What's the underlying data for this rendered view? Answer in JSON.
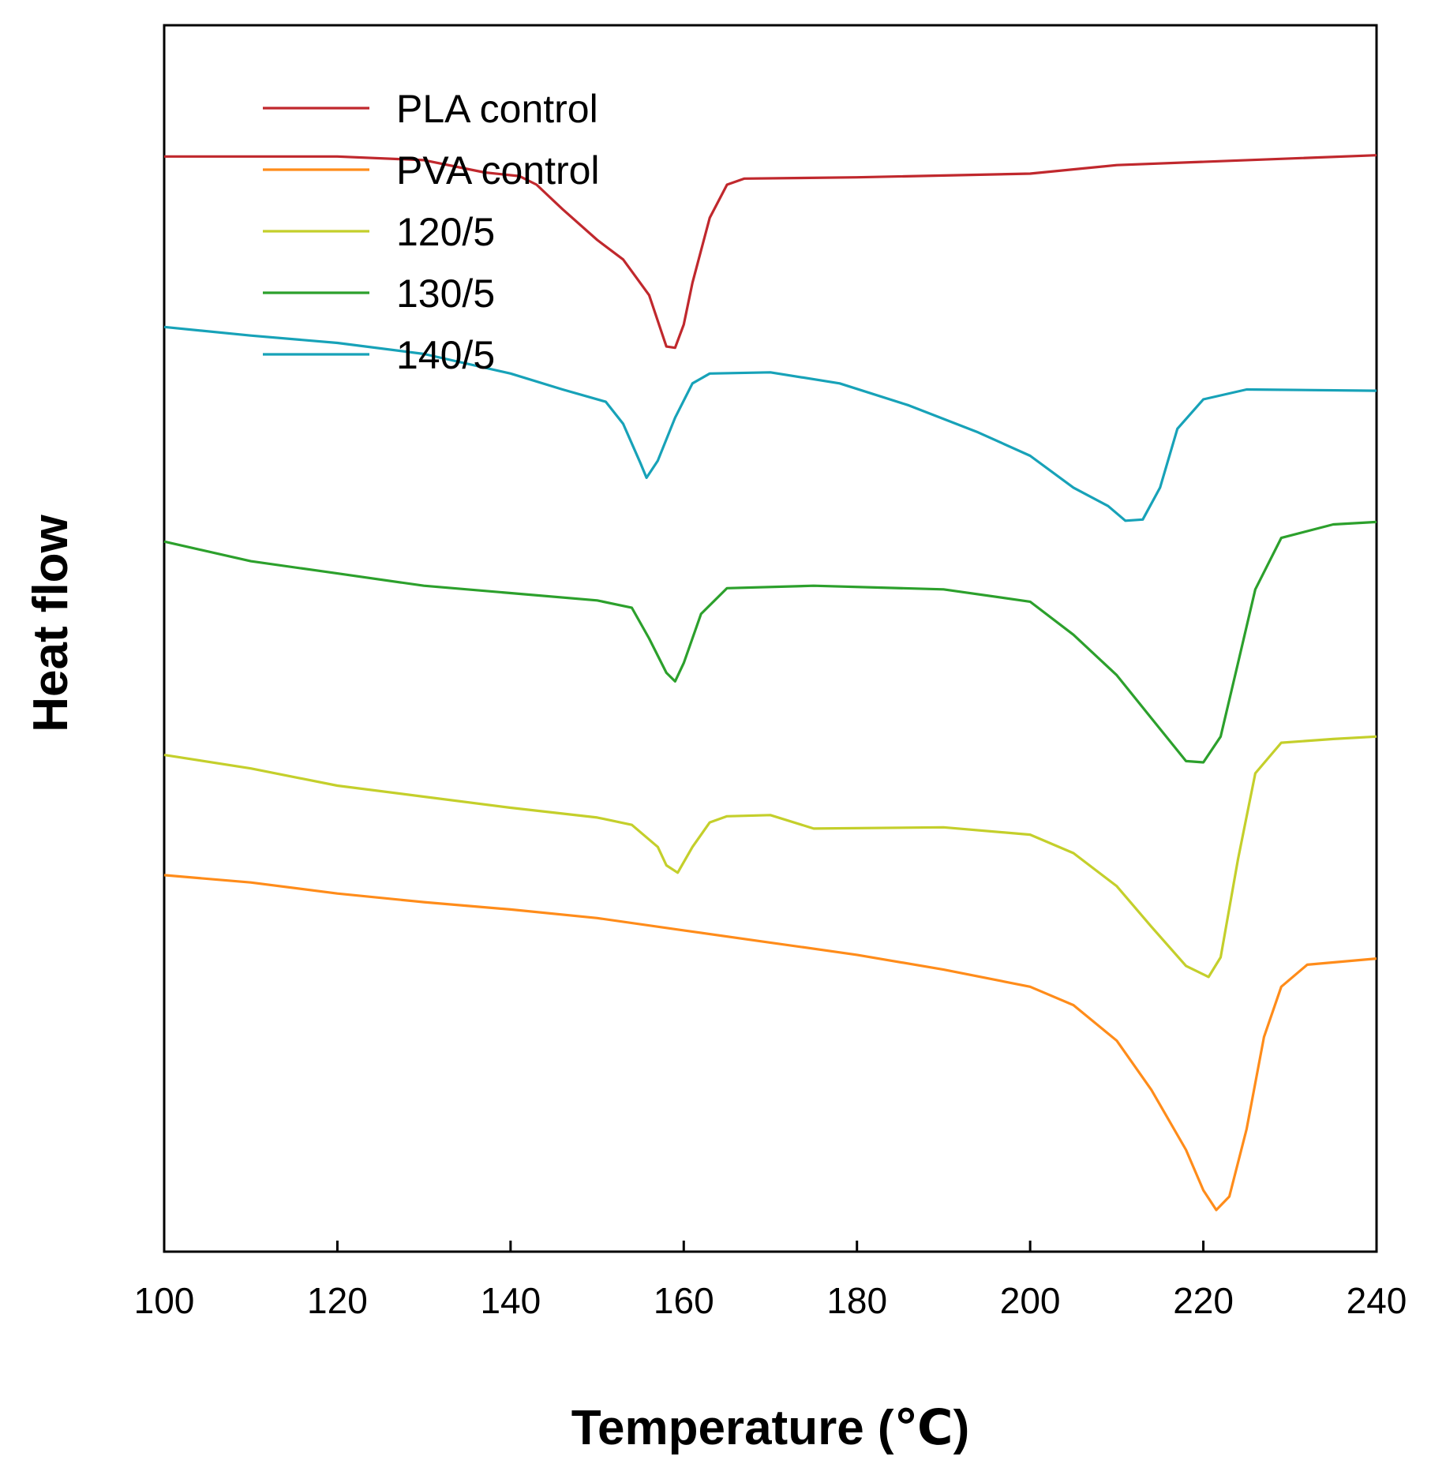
{
  "chart_data": {
    "type": "line",
    "title": "",
    "xlabel": "Temperature (℃)",
    "ylabel": "Heat flow",
    "xlim": [
      100,
      240
    ],
    "ylim": [
      0,
      100
    ],
    "xticks": [
      100,
      120,
      140,
      160,
      180,
      200,
      220,
      240
    ],
    "yticks_shown": false,
    "grid": false,
    "legend_position": "top-left",
    "series": [
      {
        "name": "PLA control",
        "color": "#c0282d",
        "points": [
          [
            100,
            89.3
          ],
          [
            120,
            89.3
          ],
          [
            130,
            89.0
          ],
          [
            137,
            88.0
          ],
          [
            141,
            87.7
          ],
          [
            143,
            87.0
          ],
          [
            146,
            85.0
          ],
          [
            150,
            82.5
          ],
          [
            153,
            80.9
          ],
          [
            156,
            78.0
          ],
          [
            158,
            73.8
          ],
          [
            159,
            73.7
          ],
          [
            160,
            75.6
          ],
          [
            161,
            79.0
          ],
          [
            163,
            84.3
          ],
          [
            165,
            87.0
          ],
          [
            167,
            87.5
          ],
          [
            180,
            87.6
          ],
          [
            200,
            87.9
          ],
          [
            210,
            88.6
          ],
          [
            240,
            89.4
          ]
        ]
      },
      {
        "name": "140/5",
        "color": "#17a2b8",
        "points": [
          [
            100,
            75.4
          ],
          [
            110,
            74.7
          ],
          [
            120,
            74.1
          ],
          [
            130,
            73.2
          ],
          [
            140,
            71.6
          ],
          [
            146,
            70.3
          ],
          [
            151,
            69.3
          ],
          [
            153,
            67.5
          ],
          [
            155,
            64.3
          ],
          [
            155.7,
            63.1
          ],
          [
            157,
            64.5
          ],
          [
            159,
            68.0
          ],
          [
            161,
            70.8
          ],
          [
            163,
            71.6
          ],
          [
            170,
            71.7
          ],
          [
            178,
            70.8
          ],
          [
            186,
            69.0
          ],
          [
            194,
            66.8
          ],
          [
            200,
            64.9
          ],
          [
            205,
            62.3
          ],
          [
            209,
            60.8
          ],
          [
            211,
            59.6
          ],
          [
            213,
            59.7
          ],
          [
            215,
            62.3
          ],
          [
            217,
            67.1
          ],
          [
            220,
            69.5
          ],
          [
            225,
            70.3
          ],
          [
            240,
            70.2
          ]
        ]
      },
      {
        "name": "130/5",
        "color": "#2ca02c",
        "points": [
          [
            100,
            57.9
          ],
          [
            110,
            56.3
          ],
          [
            120,
            55.3
          ],
          [
            130,
            54.3
          ],
          [
            140,
            53.7
          ],
          [
            150,
            53.1
          ],
          [
            154,
            52.5
          ],
          [
            156,
            50.0
          ],
          [
            158,
            47.2
          ],
          [
            159,
            46.5
          ],
          [
            160,
            48.0
          ],
          [
            162,
            52.0
          ],
          [
            165,
            54.1
          ],
          [
            175,
            54.3
          ],
          [
            190,
            54.0
          ],
          [
            200,
            53.0
          ],
          [
            205,
            50.3
          ],
          [
            210,
            47.0
          ],
          [
            214,
            43.5
          ],
          [
            218,
            40.0
          ],
          [
            220,
            39.9
          ],
          [
            222,
            42.0
          ],
          [
            224,
            48.0
          ],
          [
            226,
            54.0
          ],
          [
            229,
            58.2
          ],
          [
            235,
            59.3
          ],
          [
            240,
            59.5
          ]
        ]
      },
      {
        "name": "120/5",
        "color": "#c4cf2b",
        "points": [
          [
            100,
            40.5
          ],
          [
            110,
            39.4
          ],
          [
            120,
            38.0
          ],
          [
            130,
            37.1
          ],
          [
            140,
            36.2
          ],
          [
            150,
            35.4
          ],
          [
            154,
            34.8
          ],
          [
            157,
            33.0
          ],
          [
            158,
            31.5
          ],
          [
            159.3,
            30.9
          ],
          [
            161,
            33.0
          ],
          [
            163,
            35.0
          ],
          [
            165,
            35.5
          ],
          [
            170,
            35.6
          ],
          [
            175,
            34.5
          ],
          [
            190,
            34.6
          ],
          [
            200,
            34.0
          ],
          [
            205,
            32.5
          ],
          [
            210,
            29.8
          ],
          [
            214,
            26.5
          ],
          [
            218,
            23.3
          ],
          [
            220.6,
            22.4
          ],
          [
            222,
            24.0
          ],
          [
            224,
            32.0
          ],
          [
            226,
            39.0
          ],
          [
            229,
            41.5
          ],
          [
            235,
            41.8
          ],
          [
            240,
            42.0
          ]
        ]
      },
      {
        "name": "PVA control",
        "color": "#ff8c1a",
        "points": [
          [
            100,
            30.7
          ],
          [
            110,
            30.1
          ],
          [
            120,
            29.2
          ],
          [
            130,
            28.5
          ],
          [
            140,
            27.9
          ],
          [
            150,
            27.2
          ],
          [
            160,
            26.2
          ],
          [
            170,
            25.2
          ],
          [
            180,
            24.2
          ],
          [
            190,
            23.0
          ],
          [
            200,
            21.6
          ],
          [
            205,
            20.1
          ],
          [
            210,
            17.2
          ],
          [
            214,
            13.2
          ],
          [
            218,
            8.3
          ],
          [
            220,
            5.0
          ],
          [
            221.5,
            3.4
          ],
          [
            223,
            4.5
          ],
          [
            225,
            10.0
          ],
          [
            227,
            17.5
          ],
          [
            229,
            21.6
          ],
          [
            232,
            23.4
          ],
          [
            240,
            23.9
          ]
        ]
      }
    ]
  },
  "legend": {
    "items": [
      {
        "label": "PLA control",
        "color": "#c0282d"
      },
      {
        "label": "PVA control",
        "color": "#ff8c1a"
      },
      {
        "label": "120/5",
        "color": "#c4cf2b"
      },
      {
        "label": "130/5",
        "color": "#2ca02c"
      },
      {
        "label": "140/5",
        "color": "#17a2b8"
      }
    ]
  }
}
